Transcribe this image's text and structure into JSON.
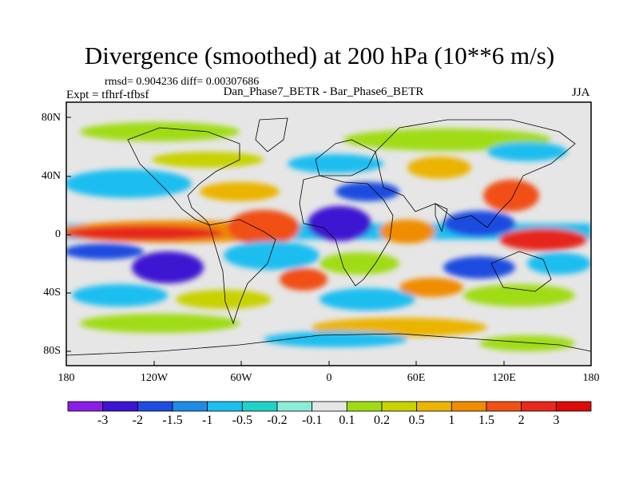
{
  "title": "Divergence (smoothed) at 200 hPa (10**6 m/s)",
  "stats": "rmsd= 0.904236 diff= 0.00307686",
  "left_label": "Expt = tfhrf-tfbsf",
  "center_label": "Dan_Phase7_BETR - Bar_Phase6_BETR",
  "right_label": "JJA",
  "y_ticks": [
    "80N",
    "40N",
    "0",
    "40S",
    "80S"
  ],
  "x_ticks": [
    "180",
    "120W",
    "60W",
    "0",
    "60E",
    "120E",
    "180"
  ],
  "colorbar": {
    "labels": [
      "-3",
      "-2",
      "-1.5",
      "-1",
      "-0.5",
      "-0.2",
      "-0.1",
      "0.1",
      "0.2",
      "0.5",
      "1",
      "1.5",
      "2",
      "3"
    ],
    "colors": [
      "#8a1ee6",
      "#3c14d2",
      "#1e4ce0",
      "#1e8ce6",
      "#1ebef0",
      "#20d2c8",
      "#8cecd8",
      "#e6e6e6",
      "#a0dc14",
      "#c8d200",
      "#ebb400",
      "#f08c00",
      "#f05014",
      "#e6281e",
      "#dc0a0a"
    ]
  }
}
